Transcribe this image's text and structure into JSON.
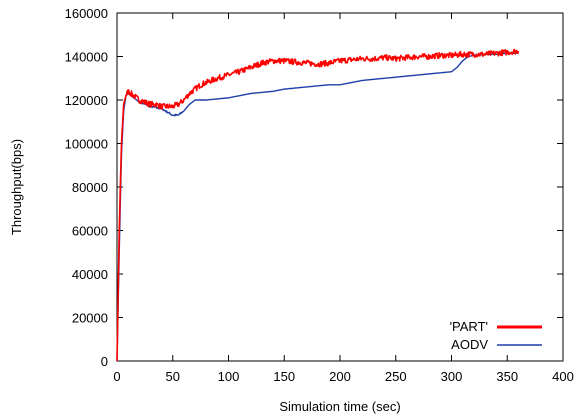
{
  "chart_data": {
    "type": "line",
    "title": "",
    "xlabel": "Simulation time (sec)",
    "ylabel": "Throughput(bps)",
    "xlim": [
      0,
      400
    ],
    "ylim": [
      0,
      160000
    ],
    "xticks": [
      0,
      50,
      100,
      150,
      200,
      250,
      300,
      350,
      400
    ],
    "yticks": [
      0,
      20000,
      40000,
      60000,
      80000,
      100000,
      120000,
      140000,
      160000
    ],
    "grid": false,
    "legend_position": "bottom-right",
    "series": [
      {
        "name": "'PART'",
        "color": "#ff0000",
        "noisy": true,
        "x": [
          0,
          2,
          4,
          6,
          8,
          10,
          15,
          20,
          25,
          30,
          35,
          40,
          45,
          50,
          55,
          60,
          65,
          70,
          75,
          80,
          90,
          100,
          110,
          120,
          130,
          140,
          150,
          160,
          170,
          180,
          190,
          200,
          210,
          220,
          230,
          240,
          250,
          260,
          270,
          280,
          290,
          300,
          310,
          320,
          330,
          340,
          350,
          360
        ],
        "y": [
          0,
          60000,
          100000,
          118000,
          122000,
          124000,
          122000,
          120000,
          119000,
          118000,
          118000,
          117000,
          117000,
          117000,
          118000,
          120000,
          123000,
          125000,
          127000,
          128000,
          130000,
          131500,
          133000,
          135000,
          137000,
          138000,
          138000,
          137500,
          137000,
          136500,
          137000,
          138000,
          138500,
          139000,
          139000,
          139500,
          139000,
          139500,
          140000,
          140000,
          140500,
          140500,
          141000,
          141000,
          141000,
          141500,
          142000,
          142500
        ]
      },
      {
        "name": "AODV",
        "color": "#1f3fa8",
        "noisy": false,
        "x": [
          0,
          2,
          4,
          6,
          8,
          10,
          15,
          20,
          25,
          30,
          40,
          50,
          55,
          60,
          65,
          70,
          75,
          80,
          90,
          100,
          110,
          120,
          130,
          140,
          150,
          160,
          170,
          180,
          190,
          200,
          210,
          220,
          230,
          240,
          250,
          260,
          270,
          280,
          290,
          300,
          305,
          310,
          315,
          320,
          330,
          340,
          350,
          360
        ],
        "y": [
          0,
          50000,
          95000,
          115000,
          122000,
          123000,
          121000,
          119000,
          118000,
          117000,
          116000,
          113000,
          113000,
          115000,
          118000,
          120000,
          120000,
          120000,
          120500,
          121000,
          122000,
          123000,
          123500,
          124000,
          125000,
          125500,
          126000,
          126500,
          127000,
          127000,
          128000,
          129000,
          129500,
          130000,
          130500,
          131000,
          131500,
          132000,
          132500,
          133000,
          135000,
          138000,
          140000,
          140500,
          141000,
          141000,
          141500,
          141500
        ]
      }
    ]
  }
}
